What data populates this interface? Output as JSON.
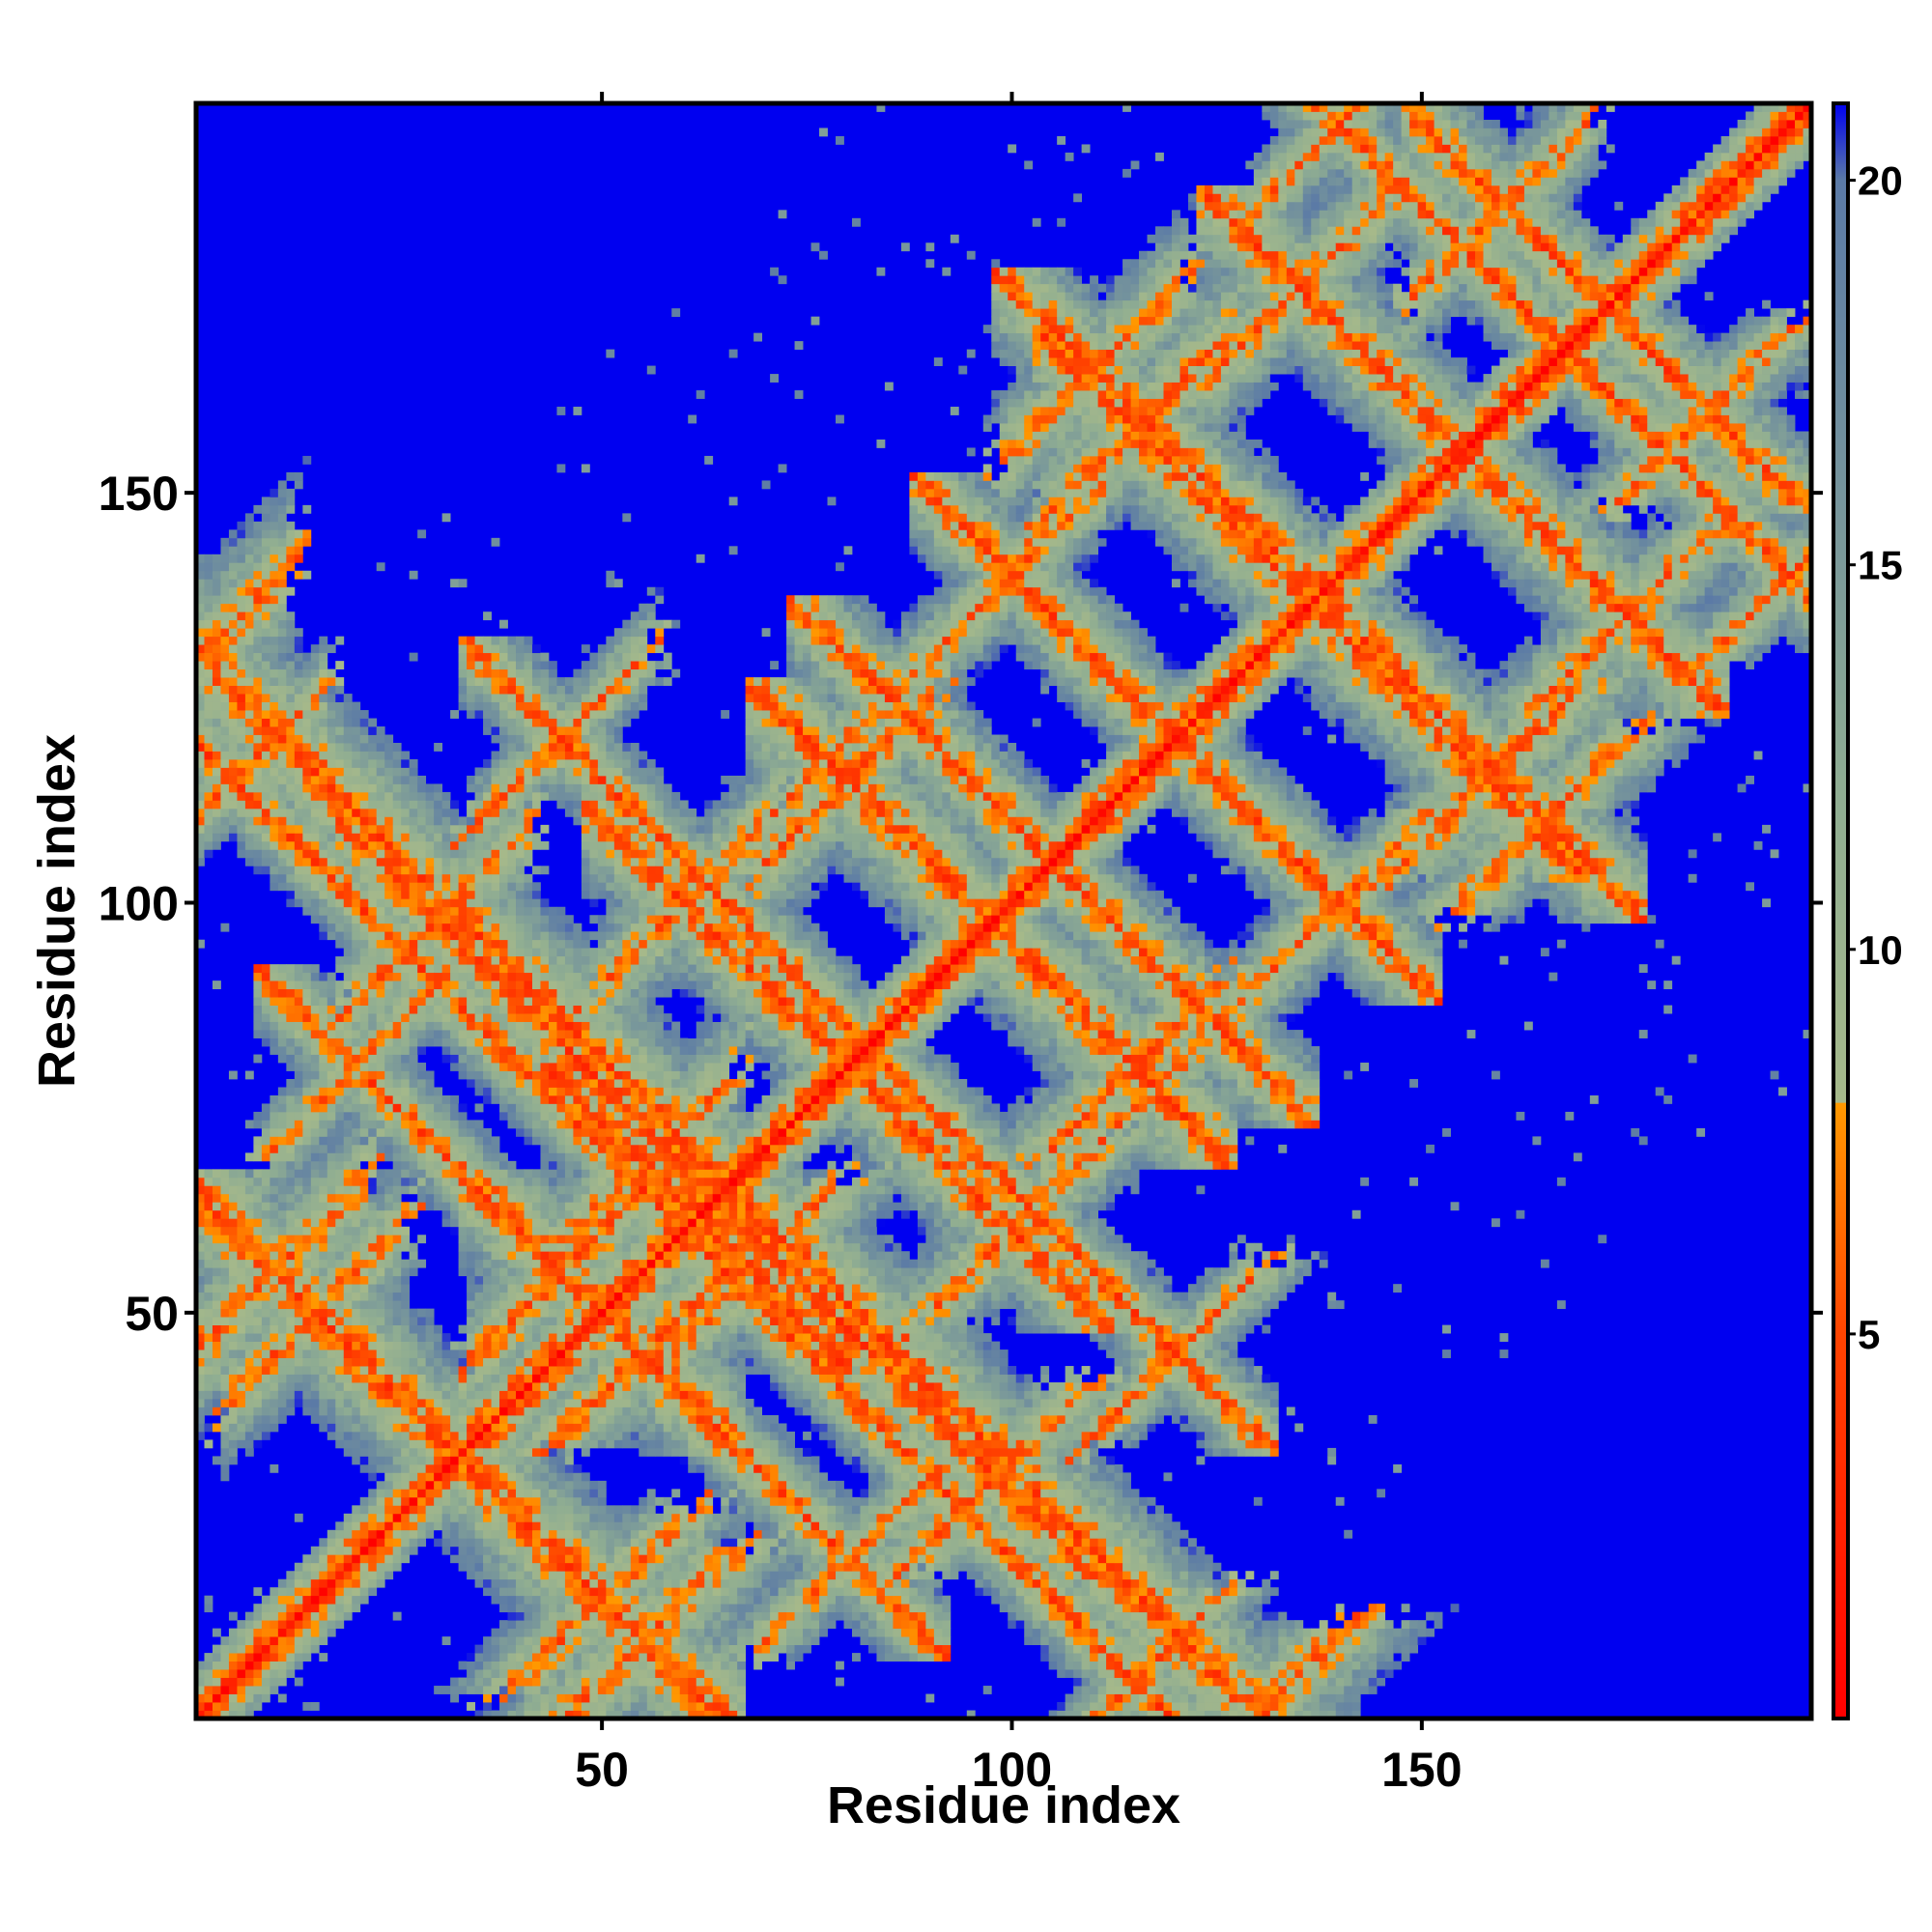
{
  "chart_data": {
    "type": "heatmap",
    "title": "",
    "xlabel": "Residue index",
    "ylabel": "Residue index",
    "xlim": [
      1,
      197
    ],
    "ylim": [
      1,
      197
    ],
    "x_ticks": [
      50,
      100,
      150
    ],
    "y_ticks": [
      50,
      100,
      150
    ],
    "x_tick_labels": [
      "50",
      "100",
      "150"
    ],
    "y_tick_labels": [
      "50",
      "100",
      "150"
    ],
    "colorbar": {
      "range": [
        0,
        21
      ],
      "ticks": [
        5,
        10,
        15,
        20
      ],
      "tick_labels": [
        "5",
        "10",
        "15",
        "20"
      ],
      "colors": [
        {
          "value": 0,
          "color": "#ff0000"
        },
        {
          "value": 5,
          "color": "#ff4400"
        },
        {
          "value": 8,
          "color": "#ff9900"
        },
        {
          "value": 8.01,
          "color": "#a6b98a"
        },
        {
          "value": 12,
          "color": "#8fad92"
        },
        {
          "value": 20,
          "color": "#5b7aa6"
        },
        {
          "value": 21,
          "color": "#0000f0"
        }
      ]
    },
    "background_color": "#0000f0",
    "matrix_description_values": {
      "diagonal_value": 0,
      "off_contact_value": 21
    },
    "contact_bands": [
      {
        "a": 10,
        "b": 55,
        "w": 1.0
      },
      {
        "a": 1,
        "b": 130,
        "w": 1.0
      },
      {
        "a": 15,
        "b": 50,
        "w": 0.8
      },
      {
        "a": 45,
        "b": 55,
        "w": 0.9
      },
      {
        "a": 55,
        "b": 68,
        "w": 0.9
      },
      {
        "a": 30,
        "b": 98,
        "w": 0.8
      },
      {
        "a": 60,
        "b": 100,
        "w": 0.8
      },
      {
        "a": 80,
        "b": 115,
        "w": 0.9
      },
      {
        "a": 85,
        "b": 125,
        "w": 0.7
      },
      {
        "a": 115,
        "b": 158,
        "w": 0.9
      },
      {
        "a": 110,
        "b": 165,
        "w": 0.8
      },
      {
        "a": 135,
        "b": 175,
        "w": 0.8
      },
      {
        "a": 160,
        "b": 185,
        "w": 0.7
      },
      {
        "a": 100,
        "b": 140,
        "w": 0.7
      },
      {
        "a": 5,
        "b": 115,
        "w": 0.6
      },
      {
        "a": 45,
        "b": 120,
        "w": 0.6
      },
      {
        "a": 140,
        "b": 195,
        "w": 0.6
      },
      {
        "a": 20,
        "b": 80,
        "w": 0.6
      }
    ]
  }
}
